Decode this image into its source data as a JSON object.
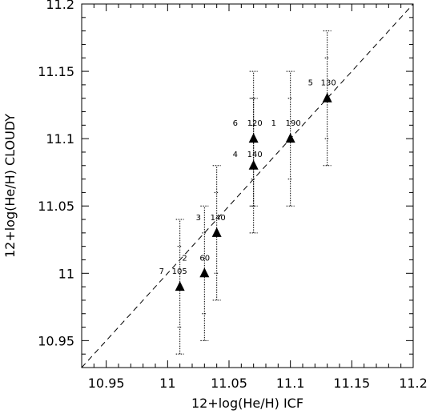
{
  "chart_data": {
    "type": "scatter",
    "xlabel": "12+log(He/H) ICF",
    "ylabel": "12+log(He/H) CLOUDY",
    "xlim": [
      10.93,
      11.2
    ],
    "ylim": [
      10.93,
      11.2
    ],
    "xticks": [
      10.95,
      11,
      11.05,
      11.1,
      11.15,
      11.2
    ],
    "yticks": [
      10.95,
      11,
      11.05,
      11.1,
      11.15,
      11.2
    ],
    "xtick_labels": [
      "10.95",
      "11",
      "11.05",
      "11.1",
      "11.15",
      "11.2"
    ],
    "ytick_labels": [
      "10.95",
      "11",
      "11.05",
      "11.1",
      "11.15",
      "11.2"
    ],
    "grid": false,
    "reference_line": "y = x",
    "points": [
      {
        "id": "1",
        "value": "190",
        "x": 11.1,
        "y": 11.1,
        "err_low": 11.05,
        "err_high": 11.15
      },
      {
        "id": "2",
        "value": "60",
        "x": 11.03,
        "y": 11.0,
        "err_low": 10.95,
        "err_high": 11.05
      },
      {
        "id": "3",
        "value": "140",
        "x": 11.04,
        "y": 11.03,
        "err_low": 10.98,
        "err_high": 11.08
      },
      {
        "id": "4",
        "value": "140",
        "x": 11.07,
        "y": 11.08,
        "err_low": 11.03,
        "err_high": 11.13
      },
      {
        "id": "5",
        "value": "130",
        "x": 11.13,
        "y": 11.13,
        "err_low": 11.08,
        "err_high": 11.18
      },
      {
        "id": "6",
        "value": "120",
        "x": 11.07,
        "y": 11.1,
        "err_low": 11.05,
        "err_high": 11.15
      },
      {
        "id": "7",
        "value": "105",
        "x": 11.01,
        "y": 10.99,
        "err_low": 10.94,
        "err_high": 11.04
      }
    ]
  }
}
